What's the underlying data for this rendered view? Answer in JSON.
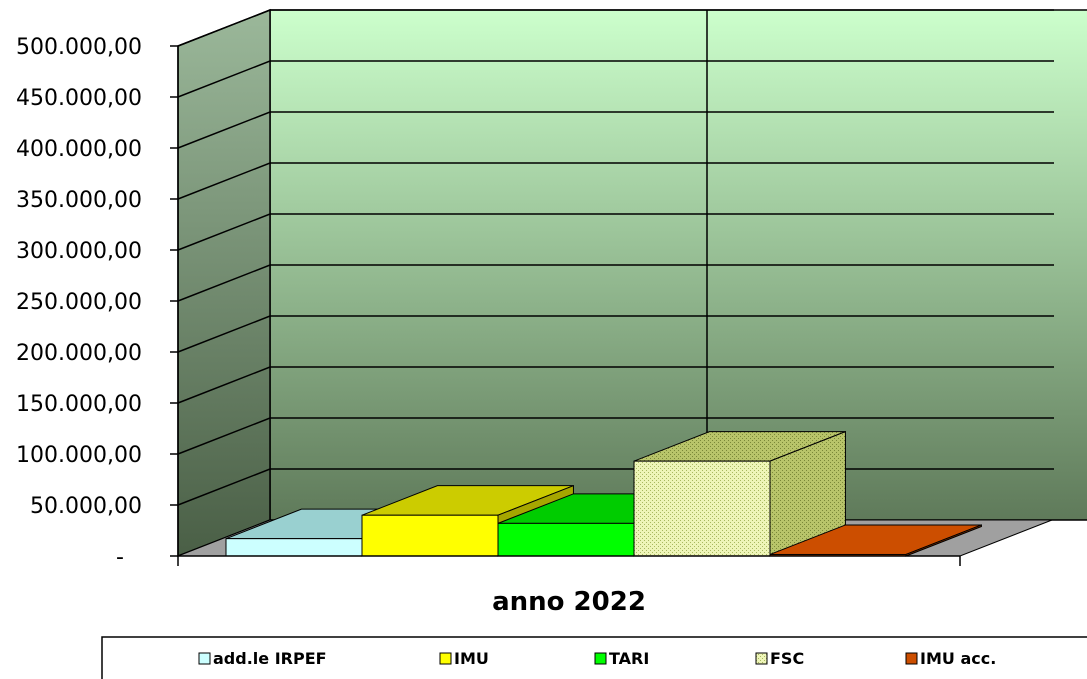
{
  "chart_data": {
    "type": "bar",
    "categories": [
      "anno 2022"
    ],
    "series": [
      {
        "name": "add.le  IRPEF",
        "values": [
          17000
        ],
        "color": "#ccffff"
      },
      {
        "name": "IMU",
        "values": [
          40000
        ],
        "color": "#ffff00"
      },
      {
        "name": "TARI",
        "values": [
          32000
        ],
        "color": "#00ff00"
      },
      {
        "name": "FSC",
        "values": [
          93000
        ],
        "color": "#e6f0a0"
      },
      {
        "name": "IMU acc.",
        "values": [
          1500
        ],
        "color": "#cc4e00"
      }
    ],
    "yticks": [
      "-",
      "50.000,00",
      "100.000,00",
      "150.000,00",
      "200.000,00",
      "250.000,00",
      "300.000,00",
      "350.000,00",
      "400.000,00",
      "450.000,00",
      "500.000,00"
    ],
    "ylim": [
      0,
      500000
    ],
    "grid": true,
    "legend_position": "bottom",
    "style": "3d-clustered-bar",
    "background_colors": {
      "top": "#ccffcc",
      "bottom": "#5f7a5a"
    }
  }
}
